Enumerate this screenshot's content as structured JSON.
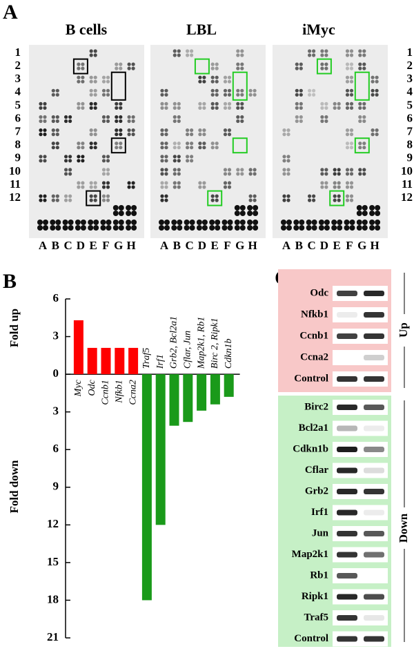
{
  "panel_labels": [
    "A",
    "B",
    "C"
  ],
  "panel_a": {
    "titles": [
      "B cells",
      "LBL",
      "iMyc"
    ],
    "rows": [
      "1",
      "2",
      "3",
      "4",
      "5",
      "6",
      "7",
      "8",
      "9",
      "10",
      "11",
      "12"
    ],
    "columns": [
      "A",
      "B",
      "C",
      "D",
      "E",
      "F",
      "G",
      "H"
    ]
  },
  "chart_data": {
    "type": "bar",
    "ylabel_up": "Fold up",
    "ylabel_down": "Fold down",
    "categories": [
      "Myc",
      "Odc",
      "Ccnb1",
      "Nfkb1",
      "Ccna2",
      "Traf5",
      "Irf1",
      "Grb2, Bcl2a1",
      "Cflar, Jun",
      "Map2k1, Rb1",
      "Birc 2, Ripk1",
      "Cdkn1b"
    ],
    "series": [
      {
        "color": "#ff0000",
        "values": [
          4.3,
          2.1,
          2.1,
          2.1,
          2.1,
          null,
          null,
          null,
          null,
          null,
          null,
          null
        ]
      },
      {
        "color": "#1a9a1a",
        "values": [
          null,
          null,
          null,
          null,
          null,
          -18,
          -12,
          -4.1,
          -3.8,
          -2.9,
          -2.4,
          -1.8
        ]
      }
    ],
    "ylim": [
      -21,
      6
    ],
    "yticks": [
      6,
      3,
      0,
      {
        "value": -3,
        "label": "3"
      },
      {
        "value": -6,
        "label": "6"
      },
      {
        "value": -9,
        "label": "9"
      },
      {
        "value": -12,
        "label": "12"
      },
      {
        "value": -15,
        "label": "15"
      },
      {
        "value": -18,
        "label": "18"
      },
      {
        "value": -21,
        "label": "21"
      }
    ]
  },
  "panel_c": {
    "up_label": "Up",
    "down_label": "Down",
    "up_genes": [
      "Odc",
      "Nfkb1",
      "Ccnb1",
      "Ccna2",
      "Control"
    ],
    "down_genes": [
      "Birc2",
      "Bcl2a1",
      "Cdkn1b",
      "Cflar",
      "Grb2",
      "Irf1",
      "Jun",
      "Map2k1",
      "Rb1",
      "Ripk1",
      "Traf5",
      "Control"
    ]
  }
}
